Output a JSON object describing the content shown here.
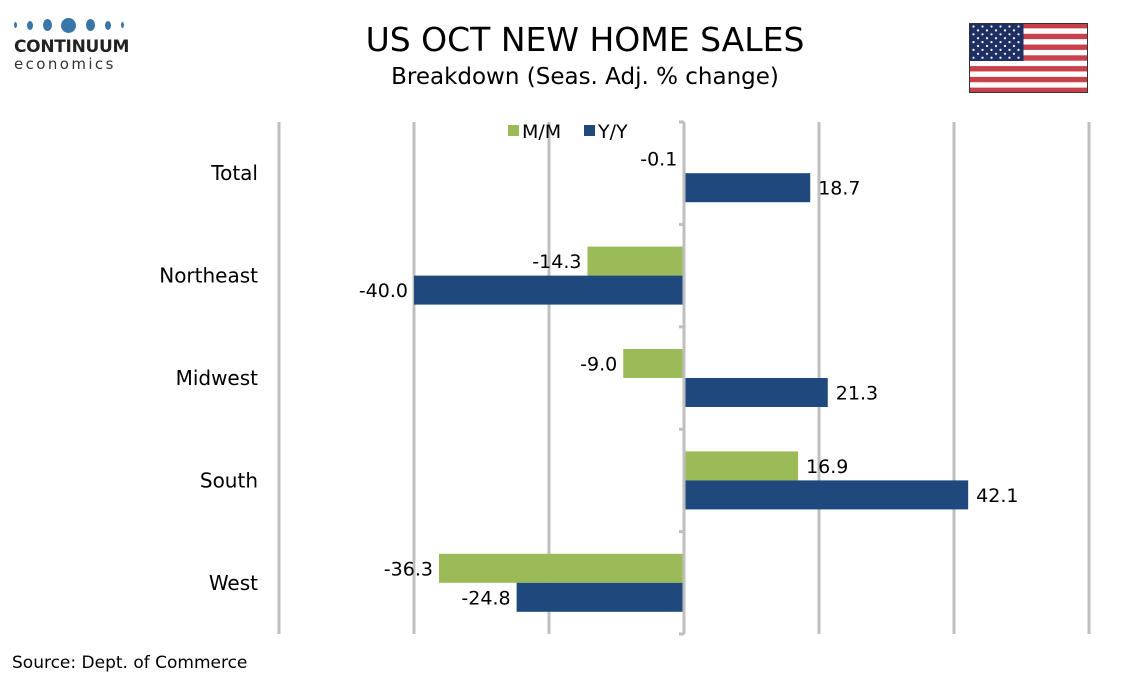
{
  "logo": {
    "name": "CONTINUUM",
    "sub": "economics"
  },
  "header": {
    "title": "US OCT NEW HOME SALES",
    "subtitle": "Breakdown (Seas. Adj. % change)",
    "flag_icon": "us-flag-icon"
  },
  "source": "Source: Dept. of Commerce",
  "colors": {
    "mm": "#9BBB59",
    "yy": "#1F497D",
    "grid": "#BFBFBF"
  },
  "chart_data": {
    "type": "bar",
    "orientation": "horizontal",
    "title": "US OCT NEW HOME SALES",
    "subtitle": "Breakdown (Seas. Adj. % change)",
    "categories": [
      "Total",
      "Northeast",
      "Midwest",
      "South",
      "West"
    ],
    "series": [
      {
        "name": "M/M",
        "values": [
          -0.1,
          -14.3,
          -9.0,
          16.9,
          -36.3
        ],
        "labels": [
          "-0.1",
          "-14.3",
          "-9.0",
          "16.9",
          "-36.3"
        ]
      },
      {
        "name": "Y/Y",
        "values": [
          18.7,
          -40.0,
          21.3,
          42.1,
          -24.8
        ],
        "labels": [
          "18.7",
          "-40.0",
          "21.3",
          "42.1",
          "-24.8"
        ]
      }
    ],
    "xlim": [
      -60,
      60
    ],
    "xticks": [
      -60,
      -40,
      -20,
      0,
      20,
      40,
      60
    ],
    "xtick_labels_visible": false,
    "grid": true,
    "legend": "top-center",
    "xlabel": "",
    "ylabel": ""
  }
}
